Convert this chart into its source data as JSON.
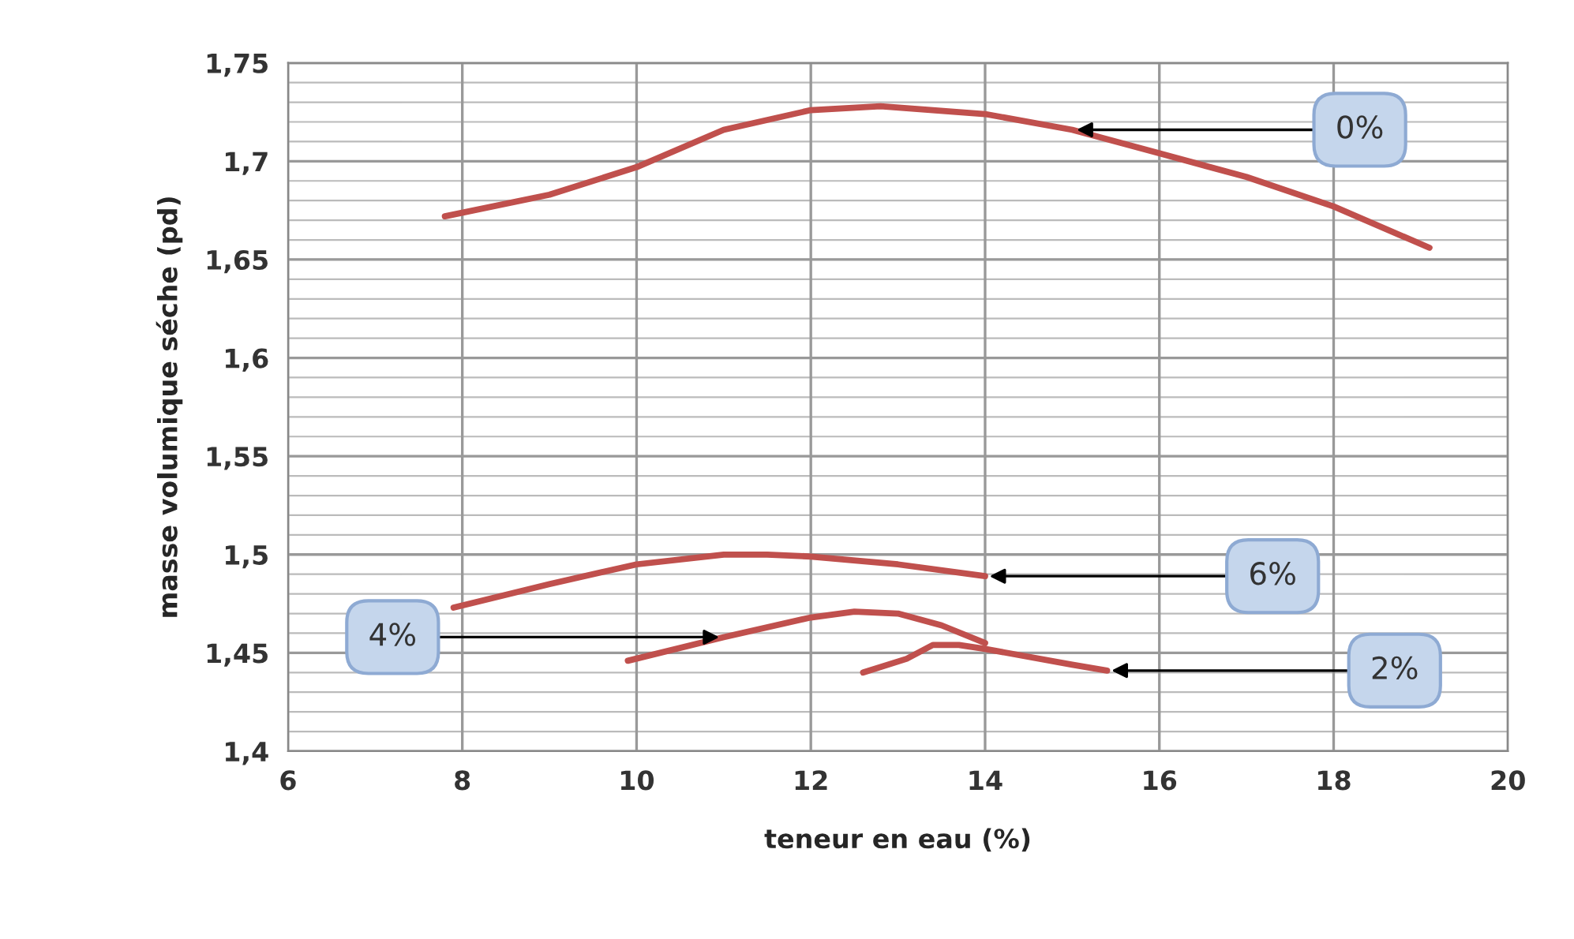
{
  "chart_data": {
    "type": "line",
    "xlabel": "teneur en eau (%)",
    "ylabel": "masse volumique séche (pd)",
    "xlim": [
      6,
      20
    ],
    "xticks": [
      6,
      8,
      10,
      12,
      14,
      16,
      18,
      20
    ],
    "ylim": [
      1.4,
      1.75
    ],
    "yticks": [
      {
        "value": 1.4,
        "label": "1,4"
      },
      {
        "value": 1.45,
        "label": "1,45"
      },
      {
        "value": 1.5,
        "label": "1,5"
      },
      {
        "value": 1.55,
        "label": "1,55"
      },
      {
        "value": 1.6,
        "label": "1,6"
      },
      {
        "value": 1.65,
        "label": "1,65"
      },
      {
        "value": 1.7,
        "label": "1,7"
      },
      {
        "value": 1.75,
        "label": "1,75"
      }
    ],
    "grid": true,
    "marker": "none",
    "line_style": "solid",
    "series": [
      {
        "name": "0%",
        "color": "#c0504d",
        "x": [
          7.8,
          9,
          10,
          11,
          12,
          12.8,
          14,
          15,
          16,
          17,
          18,
          19.1
        ],
        "values": [
          1.672,
          1.683,
          1.697,
          1.716,
          1.726,
          1.728,
          1.724,
          1.716,
          1.704,
          1.692,
          1.677,
          1.656
        ]
      },
      {
        "name": "6%",
        "color": "#c0504d",
        "x": [
          7.9,
          9,
          10,
          11,
          11.5,
          12,
          13,
          14
        ],
        "values": [
          1.473,
          1.485,
          1.495,
          1.5,
          1.5,
          1.499,
          1.495,
          1.489
        ]
      },
      {
        "name": "4%",
        "color": "#c0504d",
        "x": [
          9.9,
          11,
          12,
          12.5,
          13,
          13.5,
          14
        ],
        "values": [
          1.446,
          1.458,
          1.468,
          1.471,
          1.47,
          1.464,
          1.455
        ]
      },
      {
        "name": "2%",
        "color": "#c0504d",
        "x": [
          12.6,
          13.1,
          13.4,
          13.7,
          14,
          15,
          15.4
        ],
        "values": [
          1.44,
          1.447,
          1.454,
          1.454,
          1.452,
          1.444,
          1.441
        ]
      }
    ]
  }
}
